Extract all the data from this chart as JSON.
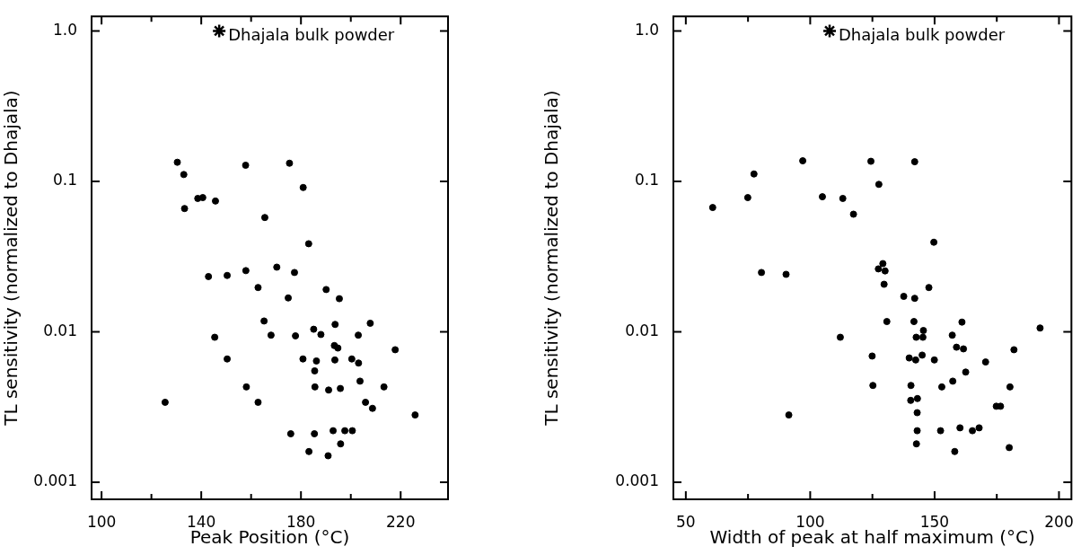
{
  "chart_data": [
    {
      "type": "scatter",
      "xlabel": "Peak Position (°C)",
      "ylabel": "TL sensitivity (normalized to Dhajala)",
      "log": "y",
      "marker": "circle",
      "xlim": [
        96,
        239
      ],
      "xticks": [
        100,
        {
          "value": 120,
          "label": null
        },
        140,
        {
          "value": 160,
          "label": null
        },
        180,
        {
          "value": 200,
          "label": null
        },
        220
      ],
      "ylim": [
        0.00077,
        1.25
      ],
      "yticks": [
        0.001,
        0.01,
        0.1,
        {
          "value": 1,
          "label": "1.0"
        }
      ],
      "series": [
        {
          "color": "#000000",
          "x": [
            130.4,
            133.0,
            133.3,
            138.6,
            140.6,
            145.7,
            157.8,
            165.5,
            175.4,
            180.9,
            183.1,
            142.9,
            150.4,
            157.9,
            170.3,
            177.4,
            162.8,
            190.1,
            174.9,
            195.4,
            165.2,
            193.7,
            207.8,
            185.1,
            145.4,
            168.0,
            177.8,
            188.0,
            203.0,
            193.4,
            194.8,
            217.8,
            150.4,
            180.8,
            186.2,
            193.6,
            200.4,
            203.1,
            185.5,
            203.7,
            158.1,
            185.6,
            191.1,
            195.8,
            213.3,
            125.5,
            162.8,
            205.9,
            208.7,
            225.8,
            175.9,
            185.4,
            192.9,
            197.6,
            200.6,
            195.9,
            183.2,
            190.9
          ],
          "values": [
            0.134,
            0.111,
            0.066,
            0.077,
            0.078,
            0.074,
            0.128,
            0.0575,
            0.132,
            0.091,
            0.0385,
            0.0233,
            0.0237,
            0.0255,
            0.0269,
            0.0248,
            0.0197,
            0.0191,
            0.0168,
            0.0166,
            0.0118,
            0.0112,
            0.0114,
            0.0104,
            0.0092,
            0.0095,
            0.0094,
            0.0096,
            0.0095,
            0.0081,
            0.0078,
            0.0076,
            0.0066,
            0.0066,
            0.0064,
            0.0065,
            0.0066,
            0.0062,
            0.0055,
            0.0047,
            0.0043,
            0.0043,
            0.0041,
            0.0042,
            0.0043,
            0.0034,
            0.0034,
            0.0034,
            0.0031,
            0.0028,
            0.0021,
            0.0021,
            0.0022,
            0.0022,
            0.0022,
            0.0018,
            0.0016,
            0.0015
          ]
        },
        {
          "name": "Dhajala bulk powder",
          "color": "#000000",
          "marker": "cross",
          "x": [
            147.2
          ],
          "values": [
            1
          ]
        }
      ]
    },
    {
      "type": "scatter",
      "xlabel": "Width of peak at half maximum (°C)",
      "ylabel": "TL sensitivity (normalized to Dhajala)",
      "log": "y",
      "marker": "circle",
      "xlim": [
        45,
        205
      ],
      "xticks": [
        50,
        {
          "value": 75,
          "label": null
        },
        100,
        {
          "value": 125,
          "label": null
        },
        150,
        {
          "value": 175,
          "label": null
        },
        200
      ],
      "ylim": [
        0.00077,
        1.25
      ],
      "yticks": [
        0.001,
        0.01,
        0.1,
        {
          "value": 1,
          "label": "1.0"
        }
      ],
      "series": [
        {
          "color": "#000000",
          "x": [
            60.8,
            74.9,
            77.4,
            97.0,
            104.9,
            113.1,
            117.4,
            124.4,
            127.6,
            142.0,
            149.7,
            80.4,
            90.3,
            129.2,
            127.4,
            130.1,
            129.7,
            147.7,
            137.6,
            142.0,
            130.8,
            141.7,
            161.0,
            192.4,
            145.5,
            157.1,
            112.1,
            142.6,
            145.3,
            158.8,
            161.6,
            181.9,
            124.9,
            139.8,
            145.0,
            142.4,
            149.9,
            170.5,
            162.5,
            157.3,
            125.2,
            140.5,
            152.9,
            180.3,
            140.4,
            143.1,
            174.8,
            176.5,
            143.0,
            91.4,
            143.0,
            152.4,
            160.2,
            165.2,
            167.9,
            142.7,
            180.0,
            158.1
          ],
          "values": [
            0.067,
            0.078,
            0.112,
            0.137,
            0.079,
            0.077,
            0.0605,
            0.136,
            0.0955,
            0.135,
            0.0394,
            0.0248,
            0.0241,
            0.0284,
            0.0262,
            0.0254,
            0.0207,
            0.0197,
            0.0172,
            0.0167,
            0.0117,
            0.0117,
            0.0116,
            0.0106,
            0.0102,
            0.0095,
            0.0092,
            0.0092,
            0.0092,
            0.0079,
            0.0077,
            0.0076,
            0.0069,
            0.0067,
            0.007,
            0.0065,
            0.0065,
            0.0063,
            0.0054,
            0.0047,
            0.0044,
            0.0044,
            0.0043,
            0.0043,
            0.0035,
            0.0036,
            0.0032,
            0.0032,
            0.0029,
            0.0028,
            0.0022,
            0.0022,
            0.0023,
            0.0022,
            0.0023,
            0.0018,
            0.0017,
            0.0016
          ]
        },
        {
          "name": "Dhajala bulk powder",
          "color": "#000000",
          "marker": "cross",
          "x": [
            107.8
          ],
          "values": [
            1
          ]
        }
      ]
    }
  ]
}
